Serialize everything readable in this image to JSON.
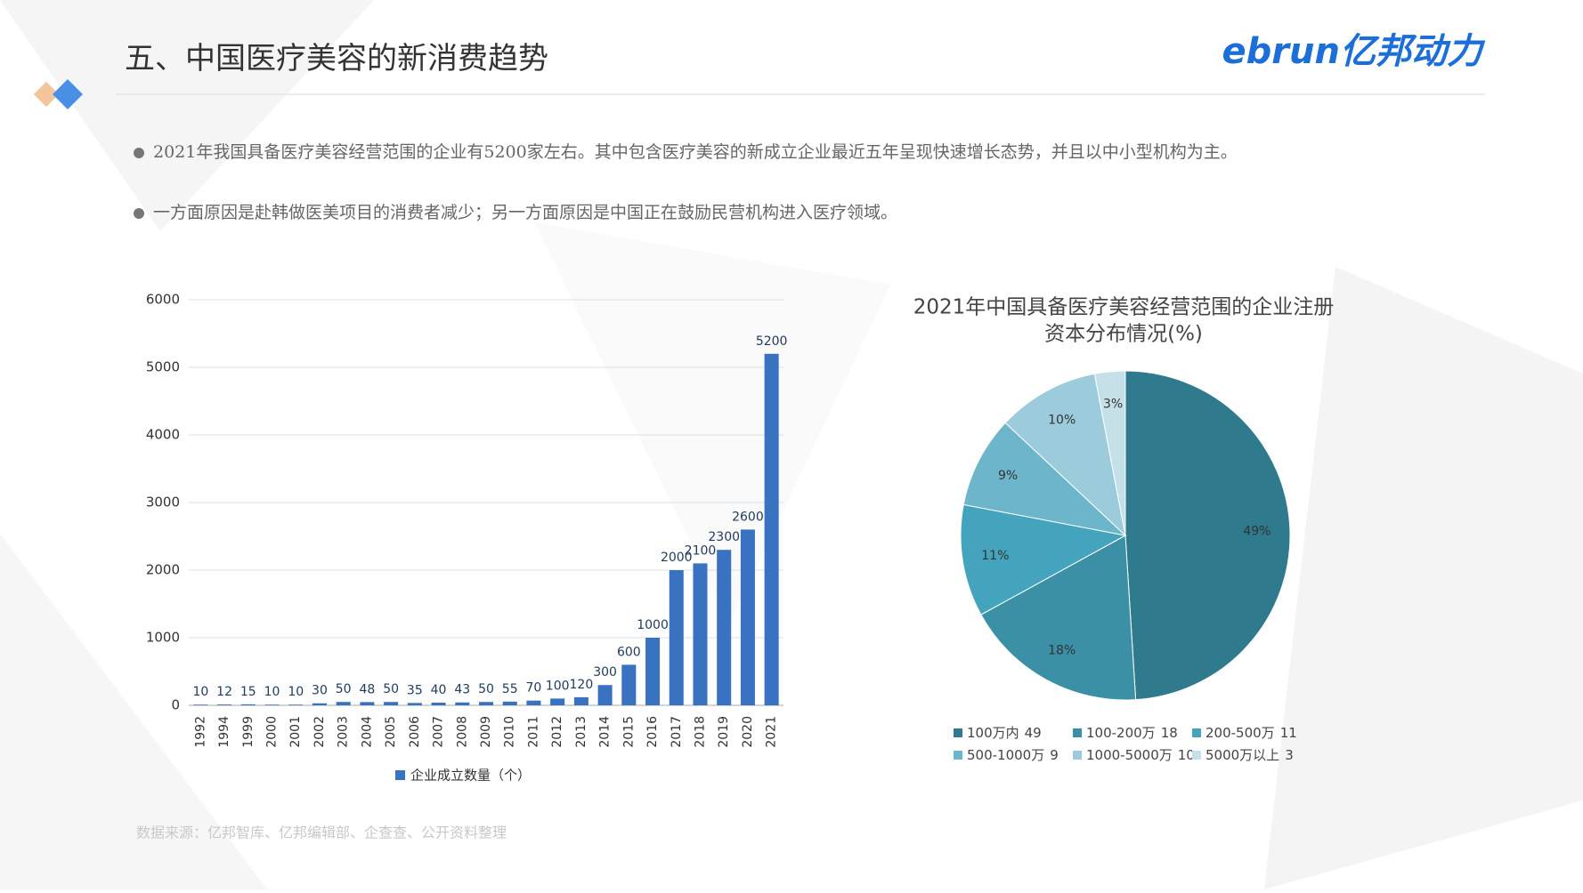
{
  "header": {
    "title": "五、中国医疗美容的新消费趋势",
    "logo": "ebrun亿邦动力"
  },
  "bullets": [
    "2021年我国具备医疗美容经营范围的企业有5200家左右。其中包含医疗美容的新成立企业最近五年呈现快速增长态势，并且以中小型机构为主。",
    "一方面原因是赴韩做医美项目的消费者减少；另一方面原因是中国正在鼓励民营机构进入医疗领域。"
  ],
  "source": "数据来源：亿邦智库、亿邦编辑部、企查查、公开资料整理",
  "chart_data": [
    {
      "type": "bar",
      "categories": [
        "1992",
        "1994",
        "1999",
        "2000",
        "2001",
        "2002",
        "2003",
        "2004",
        "2005",
        "2006",
        "2007",
        "2008",
        "2009",
        "2010",
        "2011",
        "2012",
        "2013",
        "2014",
        "2015",
        "2016",
        "2017",
        "2018",
        "2019",
        "2020",
        "2021"
      ],
      "series": [
        {
          "name": "企业成立数量（个）",
          "color": "#3a72c2",
          "values": [
            10,
            12,
            15,
            10,
            10,
            30,
            50,
            48,
            50,
            35,
            40,
            43,
            50,
            55,
            70,
            100,
            120,
            300,
            600,
            1000,
            2000,
            2100,
            2300,
            2600,
            5200
          ]
        }
      ],
      "ylim": [
        0,
        6000
      ],
      "yticks": [
        0,
        1000,
        2000,
        3000,
        4000,
        5000,
        6000
      ],
      "grid": true,
      "legend": "bottom"
    },
    {
      "type": "pie",
      "title": [
        "2021年中国具备医疗美容经营范围的企业注册",
        "资本分布情况(%)"
      ],
      "categories": [
        "100万内",
        "100-200万",
        "200-500万",
        "500-1000万",
        "1000-5000万",
        "5000万以上"
      ],
      "values": [
        49,
        18,
        11,
        9,
        10,
        3
      ],
      "value_labels": [
        "49%",
        "18%",
        "11%",
        "9%",
        "10%",
        "3%"
      ],
      "colors": [
        "#2f7b8d",
        "#3b90a6",
        "#45a4bd",
        "#6cb5cb",
        "#9ccbdb",
        "#c6e0e9"
      ],
      "legend": "bottom"
    }
  ]
}
